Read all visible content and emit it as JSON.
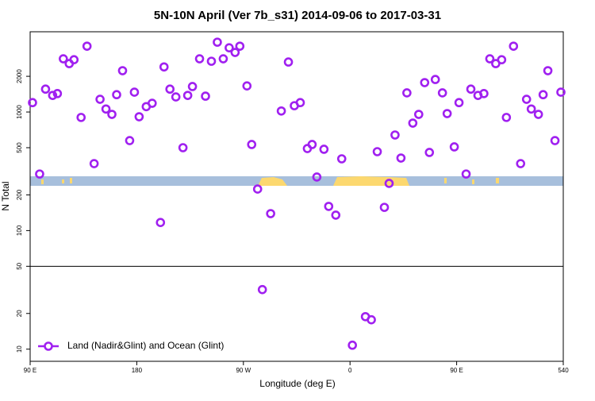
{
  "chart_data": {
    "type": "scatter",
    "title": "5N-10N April (Ver 7b_s31)   2014-09-06 to 2017-03-31",
    "x_label": "Longitude (deg E)",
    "y_label": "N Total",
    "log_y": true,
    "xlim": [
      90,
      540
    ],
    "ylim": [
      7.9,
      4750
    ],
    "xticks": [
      {
        "value": 90,
        "label": "90 E"
      },
      180,
      {
        "value": 270,
        "label": "90 W"
      },
      {
        "value": 360,
        "label": "0"
      },
      {
        "value": 450,
        "label": "90 E"
      },
      540
    ],
    "yticks": [
      10,
      20,
      50,
      100,
      200,
      500,
      1000,
      2000
    ],
    "hline": 50,
    "legend_position": "bottom-left",
    "series": [
      {
        "name": "Land (Nadir&Glint) and Ocean (Glint)",
        "color": "#a020f0",
        "x": [
          92,
          98,
          103,
          109,
          113,
          118,
          123,
          127,
          133,
          138,
          144,
          149,
          154,
          159,
          163,
          168,
          174,
          178,
          182,
          188,
          193,
          200,
          203,
          208,
          213,
          219,
          223,
          227,
          233,
          238,
          243,
          248,
          253,
          258,
          263,
          267,
          273,
          277,
          282,
          286,
          293,
          302,
          308,
          313,
          318,
          324,
          328,
          332,
          338,
          342,
          348,
          353,
          362,
          373,
          378,
          383,
          389,
          393,
          398,
          403,
          408,
          413,
          418,
          423,
          427,
          432,
          438,
          442,
          448,
          452,
          458,
          462,
          468,
          473,
          478,
          483,
          488,
          492,
          498,
          504,
          509,
          513,
          519,
          523,
          527,
          533,
          538
        ],
        "values": [
          1200,
          300,
          1560,
          1380,
          1430,
          2810,
          2560,
          2760,
          900,
          3590,
          367,
          1280,
          1060,
          955,
          1400,
          2230,
          574,
          1470,
          912,
          1110,
          1185,
          117,
          2400,
          1560,
          1340,
          500,
          1380,
          1640,
          2810,
          1360,
          2680,
          3880,
          2810,
          3480,
          3180,
          3590,
          1660,
          532,
          224,
          31.8,
          139,
          1020,
          2640,
          1130,
          1200,
          492,
          532,
          283,
          485,
          160,
          135,
          403,
          10.8,
          18.8,
          17.7,
          463,
          157,
          250,
          640,
          409,
          1450,
          806,
          955,
          1770,
          456,
          1880,
          1450,
          970,
          508,
          1200,
          300,
          1560,
          1380,
          1430,
          2810,
          2560,
          2760,
          900,
          3590,
          367,
          1280,
          1060,
          955,
          1400,
          2230,
          574,
          1470
        ]
      }
    ]
  }
}
